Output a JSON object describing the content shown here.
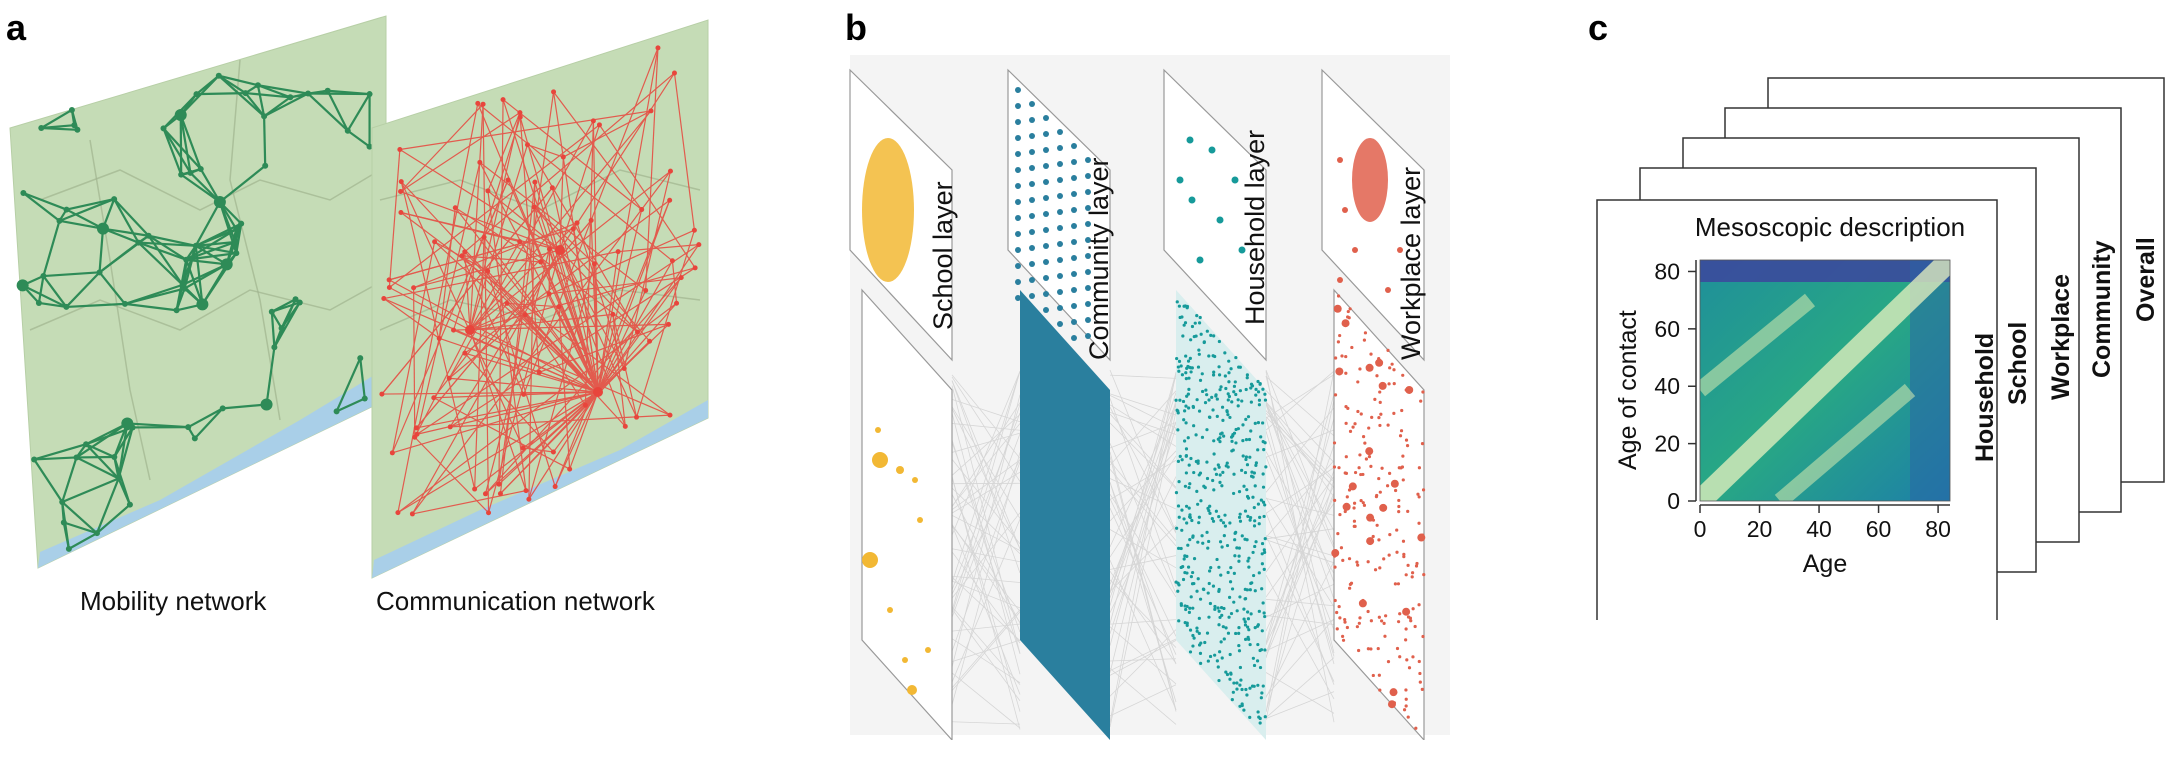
{
  "panels": {
    "a": {
      "letter": "a",
      "captions": [
        "Mobility network",
        "Communication network"
      ],
      "colors": {
        "map": "#c5dcb6",
        "sea": "#a9cfe8",
        "mobility": "#2e8b57",
        "communication": "#e8453c"
      }
    },
    "b": {
      "letter": "b",
      "layers": [
        {
          "label": "School layer",
          "color": "#f2b834"
        },
        {
          "label": "Community layer",
          "color": "#2a7f9e"
        },
        {
          "label": "Household layer",
          "color": "#169a9a"
        },
        {
          "label": "Workplace layer",
          "color": "#e0604c"
        }
      ]
    },
    "c": {
      "letter": "c",
      "stack_labels": [
        "Household",
        "School",
        "Workplace",
        "Community",
        "Overall"
      ],
      "heatmap_title": "Mesoscopic description",
      "xlabel": "Age",
      "ylabel": "Age of contact",
      "ticks": [
        "0",
        "20",
        "40",
        "60",
        "80"
      ],
      "axis_range": [
        0,
        84
      ],
      "colors": {
        "low": "#3b4a9c",
        "mid": "#1f9e8a",
        "high": "#e8f2c0"
      }
    }
  }
}
